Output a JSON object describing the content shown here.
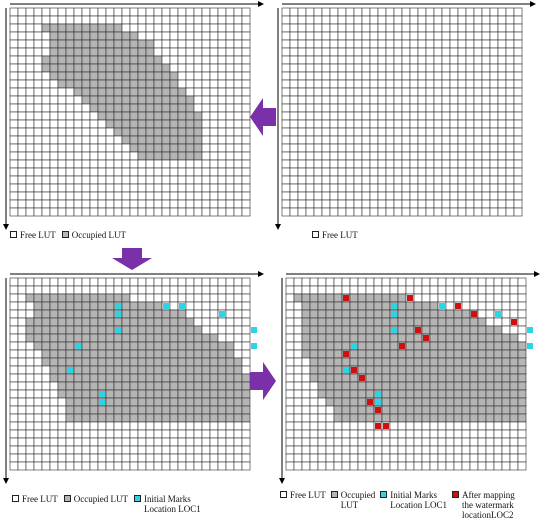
{
  "colors": {
    "free": "#ffffff",
    "occupied": "#b5b5b5",
    "initial_mark": "#2fd3e6",
    "mapped_mark": "#d01010",
    "grid_line": "#2c2c2c",
    "arrow": "#7a30a8"
  },
  "grid": {
    "cols": 31,
    "rows": 27
  },
  "marks_initial": [
    [
      12,
      1
    ],
    [
      18,
      1
    ],
    [
      20,
      1
    ],
    [
      25,
      2
    ],
    [
      12,
      2
    ],
    [
      29,
      4
    ],
    [
      12,
      4
    ],
    [
      29,
      6
    ],
    [
      7,
      6
    ],
    [
      6,
      9
    ],
    [
      10,
      12
    ],
    [
      10,
      13
    ]
  ],
  "marks_mapped": [
    [
      6,
      0
    ],
    [
      14,
      0
    ],
    [
      20,
      1
    ],
    [
      22,
      2
    ],
    [
      27,
      3
    ],
    [
      6,
      7
    ],
    [
      15,
      4
    ],
    [
      16,
      5
    ],
    [
      13,
      6
    ],
    [
      7,
      9
    ],
    [
      8,
      10
    ],
    [
      9,
      13
    ],
    [
      10,
      14
    ],
    [
      10,
      16
    ],
    [
      11,
      16
    ]
  ],
  "panels": {
    "top_left": {
      "legend": [
        {
          "swatch": "free",
          "label": "Free LUT"
        },
        {
          "swatch": "occupied",
          "label": "Occupied LUT"
        }
      ]
    },
    "top_right": {
      "legend": [
        {
          "swatch": "free",
          "label": "Free LUT"
        }
      ]
    },
    "bottom_left": {
      "legend": [
        {
          "swatch": "free",
          "label": "Free LUT"
        },
        {
          "swatch": "occupied",
          "label": "Occupied LUT"
        },
        {
          "swatch": "initial_mark",
          "label": "Initial Marks\nLocation LOC1"
        }
      ]
    },
    "bottom_right": {
      "legend": [
        {
          "swatch": "free",
          "label": "Free LUT"
        },
        {
          "swatch": "occupied",
          "label": "Occupied\nLUT"
        },
        {
          "swatch": "initial_mark",
          "label": "Initial Marks\nLocation LOC1"
        },
        {
          "swatch": "mapped_mark",
          "label": "After mapping\nthe watermark\nlocationLOC2"
        }
      ]
    }
  }
}
